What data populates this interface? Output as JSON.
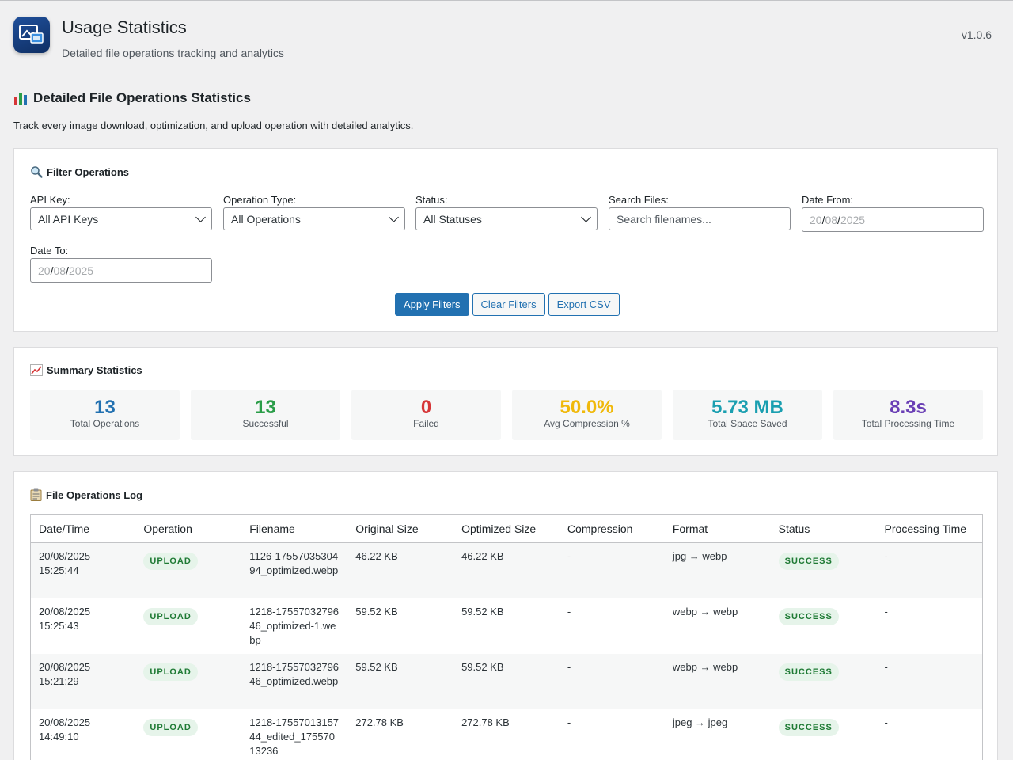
{
  "header": {
    "title": "Usage Statistics",
    "subtitle": "Detailed file operations tracking and analytics",
    "version": "v1.0.6"
  },
  "section": {
    "title": "Detailed File Operations Statistics",
    "description": "Track every image download, optimization, and upload operation with detailed analytics."
  },
  "filters": {
    "title": "Filter Operations",
    "api_key": {
      "label": "API Key:",
      "value": "All API Keys"
    },
    "operation_type": {
      "label": "Operation Type:",
      "value": "All Operations"
    },
    "status": {
      "label": "Status:",
      "value": "All Statuses"
    },
    "search": {
      "label": "Search Files:",
      "placeholder": "Search filenames..."
    },
    "date_from": {
      "label": "Date From:",
      "day": "20",
      "month": "08",
      "year": "2025"
    },
    "date_to": {
      "label": "Date To:",
      "day": "20",
      "month": "08",
      "year": "2025"
    },
    "apply_label": "Apply Filters",
    "clear_label": "Clear Filters",
    "export_label": "Export CSV"
  },
  "summary": {
    "title": "Summary Statistics",
    "stats": [
      {
        "value": "13",
        "label": "Total Operations",
        "color": "#2271b1"
      },
      {
        "value": "13",
        "label": "Successful",
        "color": "#2a9d48"
      },
      {
        "value": "0",
        "label": "Failed",
        "color": "#d63638"
      },
      {
        "value": "50.0%",
        "label": "Avg Compression %",
        "color": "#f0b90b"
      },
      {
        "value": "5.73 MB",
        "label": "Total Space Saved",
        "color": "#1a9fb0"
      },
      {
        "value": "8.3s",
        "label": "Total Processing Time",
        "color": "#6a3fb5"
      }
    ]
  },
  "log": {
    "title": "File Operations Log",
    "columns": [
      "Date/Time",
      "Operation",
      "Filename",
      "Original Size",
      "Optimized Size",
      "Compression",
      "Format",
      "Status",
      "Processing Time"
    ],
    "rows": [
      {
        "date": "20/08/2025",
        "time": "15:25:44",
        "operation": "UPLOAD",
        "filename": "1126-1755703530494_optimized.webp",
        "original": "46.22 KB",
        "optimized": "46.22 KB",
        "compression": "-",
        "format": "jpg → webp",
        "status": "SUCCESS",
        "processing": "-"
      },
      {
        "date": "20/08/2025",
        "time": "15:25:43",
        "operation": "UPLOAD",
        "filename": "1218-1755703279646_optimized-1.webp",
        "original": "59.52 KB",
        "optimized": "59.52 KB",
        "compression": "-",
        "format": "webp → webp",
        "status": "SUCCESS",
        "processing": "-"
      },
      {
        "date": "20/08/2025",
        "time": "15:21:29",
        "operation": "UPLOAD",
        "filename": "1218-1755703279646_optimized.webp",
        "original": "59.52 KB",
        "optimized": "59.52 KB",
        "compression": "-",
        "format": "webp → webp",
        "status": "SUCCESS",
        "processing": "-"
      },
      {
        "date": "20/08/2025",
        "time": "14:49:10",
        "operation": "UPLOAD",
        "filename": "1218-1755701315744_edited_17557013236",
        "original": "272.78 KB",
        "optimized": "272.78 KB",
        "compression": "-",
        "format": "jpeg → jpeg",
        "status": "SUCCESS",
        "processing": "-"
      }
    ]
  }
}
